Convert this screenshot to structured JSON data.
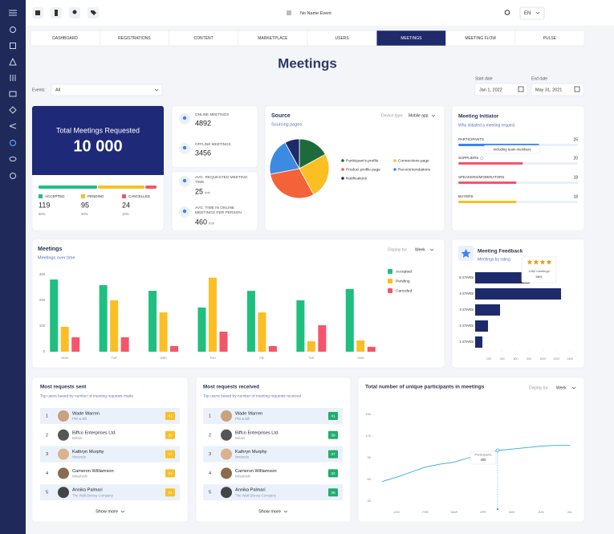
{
  "top_bar": {
    "event_name": "No Name Event",
    "language": "EN"
  },
  "tabs": [
    {
      "label": "DASHBOARD"
    },
    {
      "label": "REGISTRATIONS"
    },
    {
      "label": "CONTENT"
    },
    {
      "label": "MARKETPLACE"
    },
    {
      "label": "USERS"
    },
    {
      "label": "MEETINGS",
      "active": true
    },
    {
      "label": "MEETING FLOW"
    },
    {
      "label": "PULSE"
    }
  ],
  "title": "Meetings",
  "filters": {
    "events_label": "Events:",
    "events_value": "All",
    "start_label": "Start date",
    "start_value": "Jan 1, 2022",
    "end_label": "End date",
    "end_value": "May 31, 2021"
  },
  "total_card": {
    "title": "Total Meetings Requested",
    "value": "10 000",
    "items": [
      {
        "label": "ACCEPTED",
        "count": 119,
        "pct": 50,
        "pct_label": "50%",
        "color": "#1fbf80"
      },
      {
        "label": "PENDING",
        "count": 95,
        "pct": 40,
        "pct_label": "40%",
        "color": "#fbbf24"
      },
      {
        "label": "CANCELLED",
        "count": 24,
        "pct": 10,
        "pct_label": "10%",
        "color": "#f5556a"
      }
    ]
  },
  "stats": [
    {
      "label": "ONLINE MEETINGS",
      "value": 4892
    },
    {
      "label": "OFFLINE MEETINGS",
      "value": 3456
    },
    {
      "label": "AVG. REQUESTED MEETING TIME",
      "value": 25,
      "unit": "min"
    },
    {
      "label": "AVG. TIME IN ONLINE MEETINGS PER PERSON",
      "value": 460,
      "unit": "min"
    }
  ],
  "chart_data": [
    {
      "type": "pie",
      "title": "Source",
      "subtitle": "Sourcing pages",
      "device_label": "Device type:",
      "device_value": "Mobile app",
      "categories": [
        "Participant's profile",
        "Connections page",
        "Product profile page",
        "Recommendations",
        "Notifications"
      ],
      "values": [
        17,
        25,
        30,
        20,
        8
      ],
      "colors": [
        "#1d6b3d",
        "#fbbf24",
        "#f4623a",
        "#3b8be0",
        "#1e2a6b"
      ]
    },
    {
      "type": "bar",
      "title": "Meetings",
      "subtitle": "Meetings over time",
      "display_label": "Display by:",
      "display_value": "Week",
      "categories": [
        "MON",
        "TUE",
        "WED",
        "THU",
        "FRI",
        "TUE",
        "SUN"
      ],
      "series": [
        {
          "name": "Accepted",
          "color": "#1fbf80",
          "values": [
            281,
            259,
            237,
            172,
            237,
            200,
            244
          ]
        },
        {
          "name": "Pending",
          "color": "#fbbf24",
          "values": [
            97,
            200,
            153,
            288,
            153,
            41,
            44
          ]
        },
        {
          "name": "Canceled",
          "color": "#f5556a",
          "values": [
            56,
            56,
            22,
            78,
            22,
            103,
            19
          ]
        }
      ],
      "ylim": [
        0,
        300
      ],
      "yticks": [
        0,
        100,
        200,
        300
      ]
    },
    {
      "type": "hbar",
      "title": "Meeting Feedback",
      "subtitle": "Meetings by rating",
      "categories": [
        "5 STARS",
        "4 STARS",
        "3 STARS",
        "2 STARS",
        "1 STARS"
      ],
      "values": [
        807,
        1270,
        368,
        190,
        107
      ],
      "color": "#1e2a6b",
      "xlim": [
        0,
        1400
      ],
      "xticks": [
        200,
        400,
        600,
        800,
        1000,
        1200,
        1400
      ],
      "tooltip": {
        "label": "1452 meetings",
        "value_label": "58%"
      }
    },
    {
      "type": "line",
      "title": "Total number of unique participants in meetings",
      "display_label": "Display by:",
      "display_value": "Week",
      "categories": [
        null,
        "JAN",
        null,
        "FEB",
        null,
        "MAR",
        null,
        "APR",
        null,
        "MAY",
        null,
        "JUN",
        null,
        "JUL"
      ],
      "values": [
        57,
        63,
        70,
        77,
        81,
        84,
        90,
        94,
        100,
        102,
        104,
        106,
        107,
        107
      ],
      "color": "#29a9e1",
      "ylim": [
        20,
        160
      ],
      "yticks": [
        30,
        60,
        90,
        120,
        150
      ],
      "tooltip": {
        "label": "Participants",
        "value": "400"
      }
    },
    {
      "type": "progress",
      "title": "Meeting Initiator",
      "subtitle": "Who initiated a meeting request",
      "categories": [
        "PARTICIPANTS",
        "SUPPLIERS",
        "SPEAKERS/MODERATORS",
        "BUYERS"
      ],
      "values": [
        25,
        20,
        18,
        18
      ],
      "colors": [
        "#3b82f6",
        "#f5556a",
        "#f5556a",
        "#fbbf24"
      ],
      "xlim": [
        0,
        37
      ],
      "note": "Including team members"
    }
  ],
  "lists": [
    {
      "title": "Most requests sent",
      "subtitle": "Top users based by number of meeting requests made",
      "badge_color": "#fbbf24",
      "more": "Show more",
      "rows": [
        {
          "rank": 1,
          "name": "Wade Warren",
          "company": "Phil & Bill",
          "count": 41
        },
        {
          "rank": 2,
          "name": "Biffco Enterprises Ltd.",
          "company": "Britain",
          "count": 39
        },
        {
          "rank": 3,
          "name": "Kathryn Murphy",
          "company": "Nintendo",
          "count": 37
        },
        {
          "rank": 4,
          "name": "Cameron Williamson",
          "company": "Mitsubishi",
          "count": 36
        },
        {
          "rank": 5,
          "name": "Annika Palmari",
          "company": "The Walt Disney Company",
          "count": 31
        }
      ]
    },
    {
      "title": "Most requests received",
      "subtitle": "Top users based by number of meeting requests received",
      "badge_color": "#1fae6b",
      "more": "Show more",
      "rows": [
        {
          "rank": 1,
          "name": "Wade Warren",
          "company": "Phil & Bill",
          "count": 41
        },
        {
          "rank": 2,
          "name": "Biffco Enterprises Ltd.",
          "company": "Britain",
          "count": 39
        },
        {
          "rank": 3,
          "name": "Kathryn Murphy",
          "company": "Nintendo",
          "count": 37
        },
        {
          "rank": 4,
          "name": "Cameron Williamson",
          "company": "Mitsubishi",
          "count": 32
        },
        {
          "rank": 5,
          "name": "Annika Palmari",
          "company": "The Walt Disney Company",
          "count": 26
        }
      ]
    }
  ]
}
